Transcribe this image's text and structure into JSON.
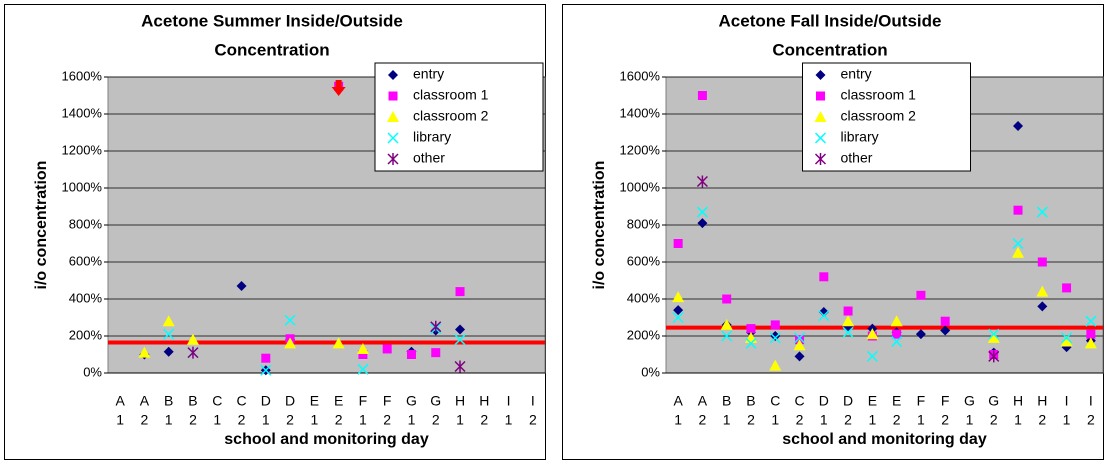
{
  "chart_data": [
    {
      "type": "scatter",
      "title": [
        "Acetone Summer Inside/Outside",
        "Concentration"
      ],
      "xlabel": "school and monitoring day",
      "ylabel": "i/o concentration",
      "categories": [
        [
          "A",
          "1"
        ],
        [
          "A",
          "2"
        ],
        [
          "B",
          "1"
        ],
        [
          "B",
          "2"
        ],
        [
          "C",
          "1"
        ],
        [
          "C",
          "2"
        ],
        [
          "D",
          "1"
        ],
        [
          "D",
          "2"
        ],
        [
          "E",
          "1"
        ],
        [
          "E",
          "2"
        ],
        [
          "F",
          "1"
        ],
        [
          "F",
          "2"
        ],
        [
          "G",
          "1"
        ],
        [
          "G",
          "2"
        ],
        [
          "H",
          "1"
        ],
        [
          "H",
          "2"
        ],
        [
          "I",
          "1"
        ],
        [
          "I",
          "2"
        ]
      ],
      "ylim": [
        0,
        1600
      ],
      "yticks": [
        {
          "value": 0,
          "label": "0%"
        },
        {
          "value": 200,
          "label": "200%"
        },
        {
          "value": 400,
          "label": "400%"
        },
        {
          "value": 600,
          "label": "600%"
        },
        {
          "value": 800,
          "label": "800%"
        },
        {
          "value": 1000,
          "label": "1000%"
        },
        {
          "value": 1200,
          "label": "1200%"
        },
        {
          "value": 1400,
          "label": "1400%"
        },
        {
          "value": 1600,
          "label": "1600%"
        }
      ],
      "grid": true,
      "legend": "top-right",
      "reference_line": {
        "value": 165,
        "color": "#ff0000"
      },
      "series": [
        {
          "name": "entry",
          "color": "#000080",
          "marker": "diamond",
          "values": [
            null,
            100,
            115,
            null,
            null,
            470,
            15,
            180,
            null,
            null,
            null,
            null,
            115,
            230,
            235,
            null,
            null,
            null
          ]
        },
        {
          "name": "classroom 1",
          "color": "#ff00ff",
          "marker": "square",
          "values": [
            null,
            null,
            null,
            null,
            null,
            null,
            80,
            185,
            null,
            1550,
            100,
            130,
            100,
            110,
            440,
            null,
            null,
            null
          ]
        },
        {
          "name": "classroom 2",
          "color": "#ffff00",
          "marker": "triangle",
          "values": [
            null,
            110,
            280,
            180,
            null,
            null,
            null,
            160,
            null,
            160,
            130,
            null,
            null,
            null,
            null,
            null,
            null,
            null
          ]
        },
        {
          "name": "library",
          "color": "#00ffff",
          "marker": "x",
          "values": [
            null,
            null,
            210,
            110,
            null,
            null,
            15,
            285,
            null,
            null,
            20,
            null,
            null,
            240,
            180,
            null,
            null,
            null
          ]
        },
        {
          "name": "other",
          "color": "#800080",
          "marker": "star",
          "values": [
            null,
            null,
            null,
            110,
            null,
            null,
            null,
            null,
            null,
            null,
            null,
            null,
            null,
            250,
            35,
            null,
            null,
            null
          ]
        }
      ]
    },
    {
      "type": "scatter",
      "title": [
        "Acetone Fall Inside/Outside",
        "Concentration"
      ],
      "xlabel": "school and monitoring day",
      "ylabel": "i/o concentration",
      "categories": [
        [
          "A",
          "1"
        ],
        [
          "A",
          "2"
        ],
        [
          "B",
          "1"
        ],
        [
          "B",
          "2"
        ],
        [
          "C",
          "1"
        ],
        [
          "C",
          "2"
        ],
        [
          "D",
          "1"
        ],
        [
          "D",
          "2"
        ],
        [
          "E",
          "1"
        ],
        [
          "E",
          "2"
        ],
        [
          "F",
          "1"
        ],
        [
          "F",
          "2"
        ],
        [
          "G",
          "1"
        ],
        [
          "G",
          "2"
        ],
        [
          "H",
          "1"
        ],
        [
          "H",
          "2"
        ],
        [
          "I",
          "1"
        ],
        [
          "I",
          "2"
        ]
      ],
      "ylim": [
        0,
        1600
      ],
      "yticks": [
        {
          "value": 0,
          "label": "0%"
        },
        {
          "value": 200,
          "label": "200%"
        },
        {
          "value": 400,
          "label": "400%"
        },
        {
          "value": 600,
          "label": "600%"
        },
        {
          "value": 800,
          "label": "800%"
        },
        {
          "value": 1000,
          "label": "1000%"
        },
        {
          "value": 1200,
          "label": "1200%"
        },
        {
          "value": 1400,
          "label": "1400%"
        },
        {
          "value": 1600,
          "label": "1600%"
        }
      ],
      "grid": true,
      "legend": "top-center",
      "reference_line": {
        "value": 245,
        "color": "#ff0000"
      },
      "series": [
        {
          "name": "entry",
          "color": "#000080",
          "marker": "diamond",
          "values": [
            340,
            810,
            260,
            220,
            200,
            90,
            330,
            250,
            240,
            220,
            210,
            230,
            null,
            110,
            1335,
            360,
            140,
            175
          ]
        },
        {
          "name": "classroom 1",
          "color": "#ff00ff",
          "marker": "square",
          "values": [
            700,
            1500,
            400,
            240,
            260,
            180,
            520,
            335,
            200,
            210,
            420,
            280,
            null,
            100,
            880,
            600,
            460,
            210
          ]
        },
        {
          "name": "classroom 2",
          "color": "#ffff00",
          "marker": "triangle",
          "values": [
            410,
            null,
            260,
            190,
            40,
            150,
            null,
            280,
            210,
            280,
            null,
            null,
            null,
            190,
            650,
            440,
            170,
            160
          ]
        },
        {
          "name": "library",
          "color": "#00ffff",
          "marker": "x",
          "values": [
            300,
            870,
            200,
            160,
            190,
            190,
            310,
            220,
            90,
            170,
            null,
            null,
            null,
            210,
            700,
            870,
            190,
            280
          ]
        },
        {
          "name": "other",
          "color": "#800080",
          "marker": "star",
          "values": [
            null,
            1035,
            null,
            null,
            null,
            null,
            null,
            null,
            null,
            null,
            null,
            null,
            null,
            90,
            null,
            null,
            null,
            null
          ]
        }
      ]
    }
  ]
}
